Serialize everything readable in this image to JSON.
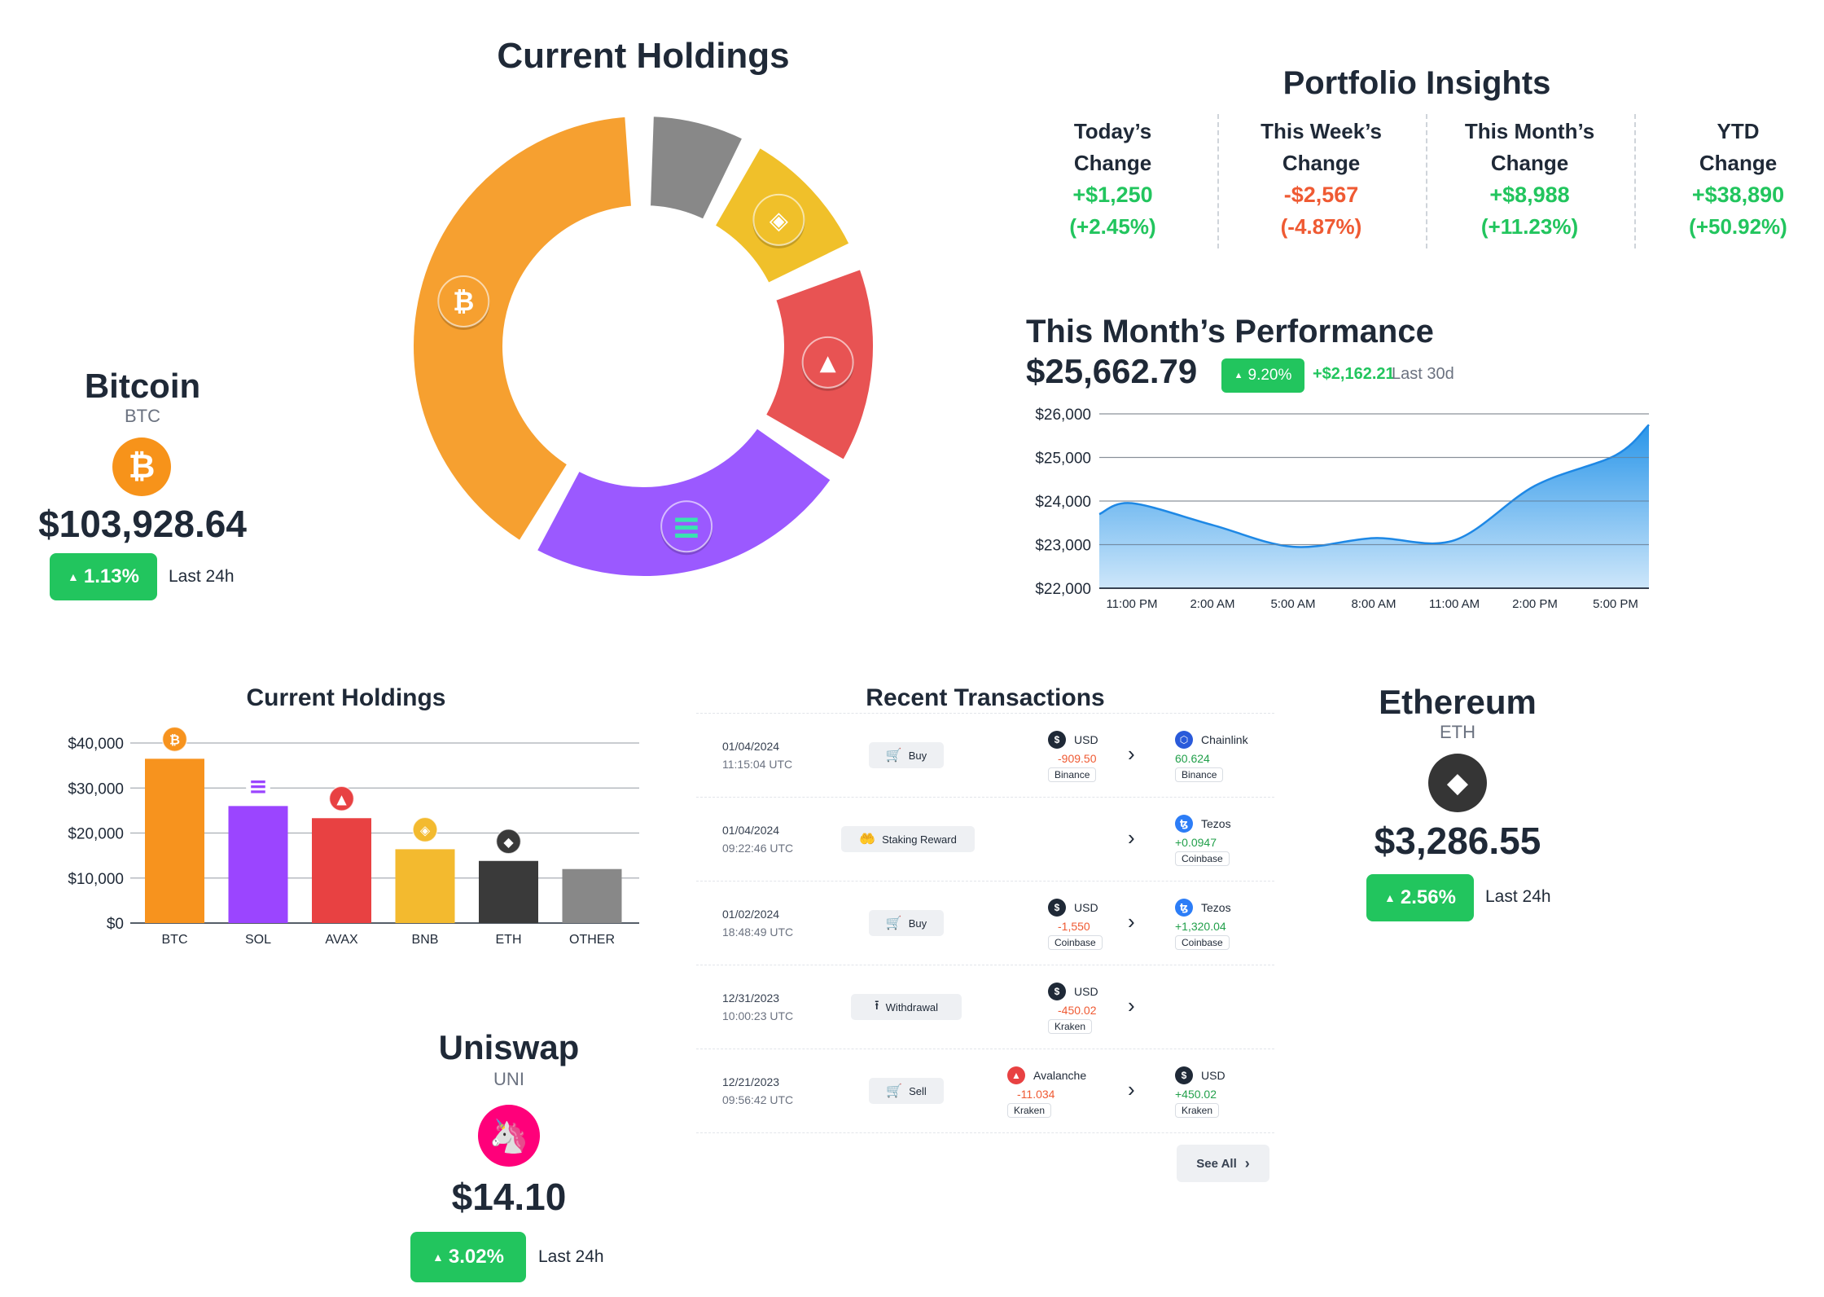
{
  "donut": {
    "title": "Current Holdings",
    "slices": [
      {
        "name": "BTC",
        "color": "#f6a030",
        "icon": "bitcoin-icon"
      },
      {
        "name": "OTHER",
        "color": "#888888",
        "icon": ""
      },
      {
        "name": "BNB",
        "color": "#f0c02a",
        "icon": "binance-icon"
      },
      {
        "name": "AVAX",
        "color": "#e85353",
        "icon": "avalanche-icon"
      },
      {
        "name": "SOL",
        "color": "#9b59ff",
        "icon": "solana-icon"
      }
    ]
  },
  "bitcoin": {
    "name": "Bitcoin",
    "symbol": "BTC",
    "glyph": "₿",
    "price": "$103,928.64",
    "change": "1.13%",
    "last": "Last 24h",
    "color": "#f7931a"
  },
  "ethereum": {
    "name": "Ethereum",
    "symbol": "ETH",
    "glyph": "◆",
    "price": "$3,286.55",
    "change": "2.56%",
    "last": "Last 24h",
    "color": "#353535"
  },
  "uniswap": {
    "name": "Uniswap",
    "symbol": "UNI",
    "glyph": "🦄",
    "price": "$14.10",
    "change": "3.02%",
    "last": "Last 24h",
    "color": "#ff007a"
  },
  "insights": {
    "title": "Portfolio Insights",
    "columns": [
      {
        "label1": "Today’s",
        "label2": "Change",
        "value": "+$1,250",
        "pct": "(+2.45%)",
        "positive": true
      },
      {
        "label1": "This Week’s",
        "label2": "Change",
        "value": "-$2,567",
        "pct": "(-4.87%)",
        "positive": false
      },
      {
        "label1": "This Month’s",
        "label2": "Change",
        "value": "+$8,988",
        "pct": "(+11.23%)",
        "positive": true
      },
      {
        "label1": "YTD",
        "label2": "Change",
        "value": "+$38,890",
        "pct": "(+50.92%)",
        "positive": true
      }
    ]
  },
  "performance": {
    "title": "This Month’s Performance",
    "value": "$25,662.79",
    "pct": "9.20%",
    "delta": "+$2,162.21",
    "last": "Last 30d",
    "color": "#1e90e8"
  },
  "chart_data": [
    {
      "type": "area",
      "title": "",
      "x": [
        "11:00 PM",
        "2:00 AM",
        "5:00 AM",
        "8:00 AM",
        "11:00 AM",
        "2:00 PM",
        "5:00 PM"
      ],
      "x_tick_labels": [
        "11:00  PM",
        "2:00 AM",
        "5:00 AM",
        "8:00 AM",
        "11:00 AM",
        "2:00 PM",
        "5:00 PM"
      ],
      "series": [
        {
          "values": [
            23950,
            23450,
            22950,
            23150,
            23100,
            24350,
            25050
          ]
        }
      ],
      "end_value": 25750,
      "start_value": 23700,
      "ylim": [
        22000,
        26000
      ],
      "y_ticks": [
        22000,
        23000,
        24000,
        25000,
        26000
      ],
      "y_tick_labels": [
        "$22,000",
        "$23,000",
        "$24,000",
        "$25,000",
        "$26,000"
      ],
      "grid": true
    },
    {
      "type": "bar",
      "title": "Current Holdings",
      "categories": [
        "BTC",
        "SOL",
        "AVAX",
        "BNB",
        "ETH",
        "OTHER"
      ],
      "values": [
        36500,
        26000,
        23300,
        16400,
        13800,
        12000
      ],
      "colors": [
        "#f7931e",
        "#9b45ff",
        "#e84142",
        "#f3ba2f",
        "#3a3a3a",
        "#888888"
      ],
      "ylim": [
        0,
        40000
      ],
      "y_ticks": [
        0,
        10000,
        20000,
        30000,
        40000
      ],
      "y_tick_labels": [
        "$0",
        "$10,000",
        "$20,000",
        "$30,000",
        "$40,000"
      ],
      "grid": true
    }
  ],
  "transactions": {
    "title": "Recent Transactions",
    "see_all": "See All",
    "rows": [
      {
        "date": "01/04/2024",
        "time": "11:15:04 UTC",
        "type": "Buy",
        "type_icon": "cart-icon",
        "from": {
          "name": "USD",
          "amount": "-909.50",
          "exchange": "Binance",
          "icon": "dollar-icon",
          "color": "#1f2937",
          "glyph": "$"
        },
        "to": {
          "name": "Chainlink",
          "amount": "60.624",
          "exchange": "Binance",
          "icon": "chainlink-icon",
          "color": "#2a5ada",
          "glyph": "⬡"
        }
      },
      {
        "date": "01/04/2024",
        "time": "09:22:46 UTC",
        "type": "Staking Reward",
        "type_icon": "staking-icon",
        "from": null,
        "to": {
          "name": "Tezos",
          "amount": "+0.0947",
          "exchange": "Coinbase",
          "icon": "tezos-icon",
          "color": "#2c7df7",
          "glyph": "ꜩ"
        }
      },
      {
        "date": "01/02/2024",
        "time": "18:48:49 UTC",
        "type": "Buy",
        "type_icon": "cart-icon",
        "from": {
          "name": "USD",
          "amount": "-1,550",
          "exchange": "Coinbase",
          "icon": "dollar-icon",
          "color": "#1f2937",
          "glyph": "$"
        },
        "to": {
          "name": "Tezos",
          "amount": "+1,320.04",
          "exchange": "Coinbase",
          "icon": "tezos-icon",
          "color": "#2c7df7",
          "glyph": "ꜩ"
        }
      },
      {
        "date": "12/31/2023",
        "time": "10:00:23 UTC",
        "type": "Withdrawal",
        "type_icon": "withdraw-icon",
        "from": {
          "name": "USD",
          "amount": "-450.02",
          "exchange": "Kraken",
          "icon": "dollar-icon",
          "color": "#1f2937",
          "glyph": "$"
        },
        "to": null
      },
      {
        "date": "12/21/2023",
        "time": "09:56:42 UTC",
        "type": "Sell",
        "type_icon": "cart-icon",
        "from": {
          "name": "Avalanche",
          "amount": "-11.034",
          "exchange": "Kraken",
          "icon": "avalanche-icon",
          "color": "#e84142",
          "glyph": "▲"
        },
        "to": {
          "name": "USD",
          "amount": "+450.02",
          "exchange": "Kraken",
          "icon": "dollar-icon",
          "color": "#1f2937",
          "glyph": "$"
        }
      }
    ]
  }
}
